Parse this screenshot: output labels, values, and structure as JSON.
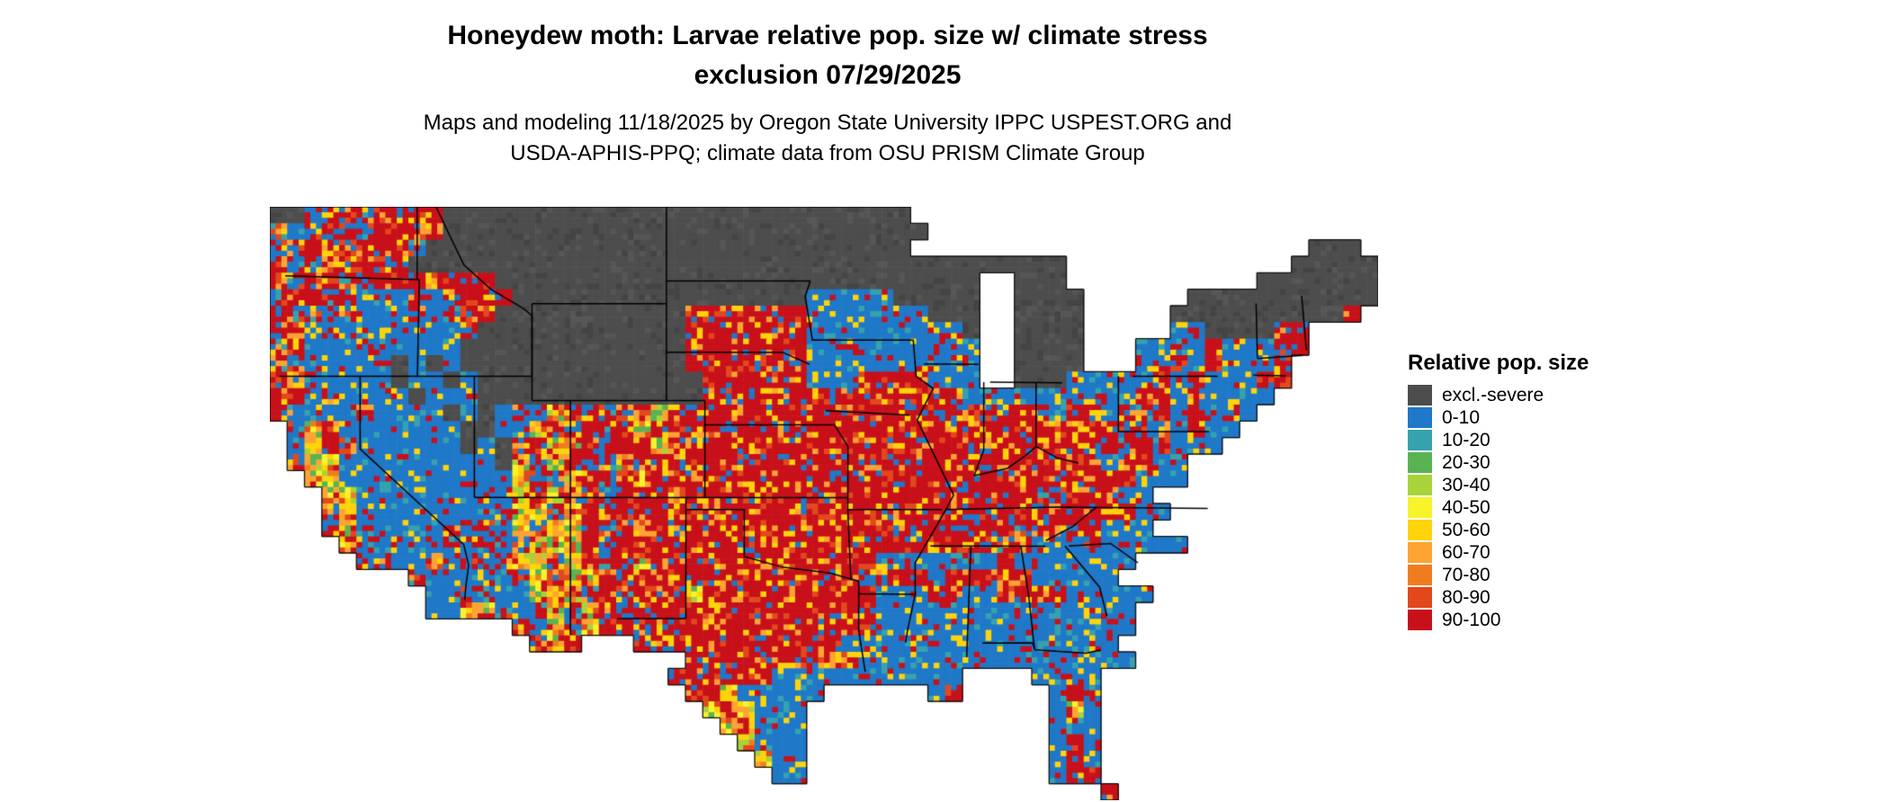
{
  "header": {
    "title_line1": "Honeydew moth: Larvae relative pop. size w/ climate stress",
    "title_line2": "exclusion 07/29/2025",
    "subtitle_line1": "Maps and modeling 11/18/2025 by Oregon State University IPPC USPEST.ORG and",
    "subtitle_line2": "USDA-APHIS-PPQ; climate data from OSU PRISM Climate Group"
  },
  "legend": {
    "title": "Relative pop. size",
    "entries": [
      {
        "label": "excl.-severe",
        "color": "#4d4d4d"
      },
      {
        "label": "0-10",
        "color": "#1f78c8"
      },
      {
        "label": "10-20",
        "color": "#35a2ad"
      },
      {
        "label": "20-30",
        "color": "#59b353"
      },
      {
        "label": "30-40",
        "color": "#a8d33a"
      },
      {
        "label": "40-50",
        "color": "#f7f32c"
      },
      {
        "label": "50-60",
        "color": "#ffd40a"
      },
      {
        "label": "60-70",
        "color": "#ffa333"
      },
      {
        "label": "70-80",
        "color": "#ef7d20"
      },
      {
        "label": "80-90",
        "color": "#e2481c"
      },
      {
        "label": "90-100",
        "color": "#c8101a"
      }
    ]
  },
  "map": {
    "background": "#ffffff",
    "outline_color": "#111111",
    "border_color": "#000000",
    "proj": {
      "lon_min": -124.7,
      "lon_span": 57.7,
      "lat_max": 49.0,
      "lat_span": 24.5
    },
    "palette": {
      "g": [
        "#4d4d4d",
        "#4d4d4d",
        "#4d4d4d",
        "#4d4d4d",
        "#4d4d4d",
        "#565656",
        "#444444",
        "#4d4d4d",
        "#4d4d4d"
      ],
      "b": [
        "#1f78c8",
        "#1f78c8",
        "#1f78c8",
        "#1f78c8",
        "#1f78c8",
        "#1f78c8",
        "#35a2ad",
        "#1f78c8",
        "#c8101a",
        "#1f78c8",
        "#ffd40a",
        "#1f78c8"
      ],
      "r": [
        "#c8101a",
        "#c8101a",
        "#c8101a",
        "#c8101a",
        "#c8101a",
        "#e2481c",
        "#c8101a",
        "#ffa333",
        "#c8101a",
        "#ffd40a",
        "#c8101a",
        "#1f78c8"
      ],
      "y": [
        "#ffd40a",
        "#ffa333",
        "#f7f32c",
        "#a8d33a",
        "#e2481c",
        "#ffd40a",
        "#c8101a",
        "#59b353",
        "#ffa333",
        "#ef7d20"
      ],
      "m": [
        "#c8101a",
        "#1f78c8",
        "#c8101a",
        "#1f78c8",
        "#ffd40a",
        "#e2481c",
        "#1f78c8",
        "#c8101a",
        "#35a2ad",
        "#ffa333",
        "#c8101a",
        "#1f78c8"
      ]
    },
    "rows": [
      "ggmmmmrrrrggggggggggggggggggggggggggg...........................",
      "mbmrmmrrmrgggggggggggggggggggggggggggg..........................",
      "mmrrmrrrmgggggggggggggggggggggggggggg.......................ggg.",
      "rmmrmrmrgggggggggggggggggggggggggggggggggggggg.............ggggg",
      "rmrrmmrrrrrrrgggggggggggggggggggggggggggg..ggg...........ggggggg",
      "mrrmmbmbmbmrrrgggggggggggggggggbbbbbggggg..gggg......ggggggggggg",
      "rmmbmbbbmbmrrgggggggggggrrrrrrrbbbbbbbggg..gggg.....ggggggggggr.",
      "mrbbbbbbbbbrggggggggggggrrrrrrrbbbbbbbbbg..gggg.....bbggggrr....",
      "mrbbbmbbbbbgggggggggggggrrrrrrrbbbbbbbbbb..gggg...bbbbrbbbrr....",
      "mmbbbbbgbgbgggggggggggggrrrrrrrbbbbbbbbbb..gggg...bbrbrbbbr.....",
      "rmbbbbbgbbgbgggggggggggggrrrrrrbbbrrrrbbb..gggbbbbbrbrbbbrr.....",
      "rrbmbbbbgbbbgggggggggggggrrrrrrrrrrrrrrrbbbbbbbbbbrrbrbbbb......",
      "rmbbbmbbbbgbgbmmyrrmmryrrrrrrrrrrrrrrrrrrrrrrbrrbrmrbrbbb......."
    ],
    "rows2": [
      ".myrbbbbbbbggbmymmrmryrrrrrrrrrrrrrrrrrrrrrrrrrrrmmmbrbb........",
      ".byrmbbbbbbgbgmmyyrmrryrrrrrrrrrrrrrrrrrrrrrrrrmrmrmbbb.........",
      ".myybbbbbbbbbgymyrmmyrrrrrrrrrrrrrrrrrrrrrrrrrrrbrrbb...........",
      "..yybbbbbbbbbbymmyrmryrrrrrrrrrrrrrrrrrrrrrrrrrrrrbbb...........",
      "...yybbbbbbbmbymyrrmrrryrrrrrrrrrrrrrrrrrrrrmmrrrbb.............",
      "...mybbbbbbbbmyymyrmrrrrrrrrrrrrrrrrrrrrrrrrrrrrrrbb............",
      "...mybbbbbmbmbymyyrmryrrrrrrrrrrrrrrrrrrrrrmmrrrbbb.............",
      "....ybbbbbmbmbmyyyrmrrrrrrrrrrrrrrrrrrrrrrmrbbbrbbbbb...........",
      ".....bmbbmbmbmyymyrmryrrrrrrrrrrrrrbbbbbbbrbbbbbbb..............",
      "........mbbbbbmymyyrmrrrrrrrrrrrrrbrrrbrrrrrbbbbb...............",
      ".........bbmbbbyyymrmrrryrrrrrrrrrrbbbrrbbrrrrbbbbb.............",
      ".........bbyymbmymyrmrrrrrrrrrrrrrrbbbbbbbbbbbbbbb..............",
      "..............mbymyrrmrrrrrrrrrrrrrbbbbbbbbbbbbbbb..............",
      "...............myr...rrrrrrrrrrrrbbbbbbbbbbbbbbbb..............."
    ],
    "rows3": [
      "........................rrrrrrrrrrbbbbbbbbbbbbbbbb..............",
      ".......................rrrrrrbbbbbbbbbbb....bbbb................",
      "........................rrybbbbb......br.....brb................",
      ".........................yrybbb..............byb................",
      "..........................yrbbb..............bbb................",
      "...........................ybbb..............brb................",
      "............................ybb..............brb................",
      ".............................bb..............brr................",
      "................................................r..............."
    ],
    "borders": [
      [
        [
          -123.9,
          46.15
        ],
        [
          -116.92,
          45.99
        ]
      ],
      [
        [
          -117.03,
          49.0
        ],
        [
          -117.03,
          46.0
        ]
      ],
      [
        [
          -116.92,
          45.99
        ],
        [
          -117.02,
          42.0
        ]
      ],
      [
        [
          -124.2,
          42.0
        ],
        [
          -111.05,
          42.0
        ]
      ],
      [
        [
          -116.05,
          49.0
        ],
        [
          -114.6,
          46.6
        ],
        [
          -113.2,
          45.6
        ],
        [
          -111.5,
          44.8
        ],
        [
          -111.05,
          44.5
        ],
        [
          -111.05,
          42.0
        ]
      ],
      [
        [
          -111.05,
          45.0
        ],
        [
          -104.05,
          45.0
        ]
      ],
      [
        [
          -111.05,
          45.0
        ],
        [
          -111.05,
          41.0
        ]
      ],
      [
        [
          -114.05,
          42.0
        ],
        [
          -114.05,
          37.0
        ]
      ],
      [
        [
          -120.0,
          42.0
        ],
        [
          -120.0,
          39.0
        ],
        [
          -114.6,
          35.05
        ]
      ],
      [
        [
          -114.6,
          35.05
        ],
        [
          -114.35,
          34.2
        ],
        [
          -114.5,
          33.3
        ],
        [
          -114.55,
          32.76
        ]
      ],
      [
        [
          -114.05,
          37.0
        ],
        [
          -94.62,
          36.99
        ]
      ],
      [
        [
          -109.05,
          41.0
        ],
        [
          -109.05,
          31.33
        ]
      ],
      [
        [
          -104.05,
          49.0
        ],
        [
          -104.05,
          41.0
        ]
      ],
      [
        [
          -111.05,
          41.0
        ],
        [
          -102.05,
          41.0
        ]
      ],
      [
        [
          -102.05,
          41.0
        ],
        [
          -102.05,
          37.0
        ]
      ],
      [
        [
          -104.05,
          45.94
        ],
        [
          -96.56,
          45.94
        ]
      ],
      [
        [
          -104.05,
          43.0
        ],
        [
          -98.0,
          42.99
        ],
        [
          -96.6,
          42.5
        ]
      ],
      [
        [
          -102.05,
          40.0
        ],
        [
          -95.31,
          40.0
        ]
      ],
      [
        [
          -96.56,
          45.94
        ],
        [
          -96.83,
          45.3
        ],
        [
          -96.45,
          43.5
        ],
        [
          -91.2,
          43.5
        ]
      ],
      [
        [
          -95.77,
          40.58
        ],
        [
          -91.4,
          40.4
        ]
      ],
      [
        [
          -95.31,
          40.0
        ],
        [
          -94.6,
          39.1
        ],
        [
          -94.61,
          36.5
        ]
      ],
      [
        [
          -94.61,
          36.5
        ],
        [
          -89.7,
          36.5
        ]
      ],
      [
        [
          -94.61,
          36.5
        ],
        [
          -94.45,
          33.63
        ],
        [
          -94.04,
          33.55
        ]
      ],
      [
        [
          -103.04,
          37.0
        ],
        [
          -103.04,
          32.0
        ]
      ],
      [
        [
          -106.62,
          32.0
        ],
        [
          -103.06,
          32.0
        ]
      ],
      [
        [
          -103.0,
          36.5
        ],
        [
          -100.0,
          36.5
        ],
        [
          -100.0,
          34.56
        ],
        [
          -98.0,
          34.12
        ],
        [
          -95.5,
          33.87
        ],
        [
          -94.45,
          33.63
        ]
      ],
      [
        [
          -94.04,
          33.55
        ],
        [
          -94.04,
          31.5
        ],
        [
          -93.7,
          29.8
        ]
      ],
      [
        [
          -94.05,
          33.02
        ],
        [
          -91.17,
          33.0
        ]
      ],
      [
        [
          -91.2,
          43.5
        ],
        [
          -91.05,
          42.0
        ],
        [
          -90.16,
          41.5
        ],
        [
          -91.0,
          40.2
        ],
        [
          -90.2,
          38.9
        ],
        [
          -89.1,
          37.1
        ],
        [
          -89.5,
          36.5
        ],
        [
          -90.3,
          35.4
        ],
        [
          -91.1,
          34.3
        ],
        [
          -91.1,
          33.0
        ],
        [
          -91.5,
          31.5
        ],
        [
          -91.6,
          31.0
        ]
      ],
      [
        [
          -90.64,
          42.51
        ],
        [
          -87.8,
          42.49
        ]
      ],
      [
        [
          -87.53,
          41.76
        ],
        [
          -87.53,
          38.95
        ],
        [
          -88.03,
          37.9
        ]
      ],
      [
        [
          -84.81,
          41.76
        ],
        [
          -84.81,
          39.1
        ]
      ],
      [
        [
          -87.2,
          41.76
        ],
        [
          -83.45,
          41.73
        ]
      ],
      [
        [
          -88.03,
          37.9
        ],
        [
          -86.3,
          38.2
        ],
        [
          -85.4,
          38.7
        ],
        [
          -84.8,
          39.1
        ],
        [
          -83.7,
          38.63
        ],
        [
          -82.6,
          38.42
        ]
      ],
      [
        [
          -89.5,
          36.5
        ],
        [
          -83.68,
          36.6
        ],
        [
          -75.87,
          36.55
        ]
      ],
      [
        [
          -90.31,
          35.0
        ],
        [
          -84.32,
          34.99
        ]
      ],
      [
        [
          -84.29,
          35.22
        ],
        [
          -82.9,
          35.8
        ],
        [
          -81.65,
          36.61
        ]
      ],
      [
        [
          -83.1,
          35.0
        ],
        [
          -80.93,
          35.1
        ],
        [
          -79.5,
          34.3
        ]
      ],
      [
        [
          -88.2,
          34.99
        ],
        [
          -88.42,
          30.4
        ]
      ],
      [
        [
          -85.6,
          34.99
        ],
        [
          -85.18,
          32.87
        ],
        [
          -84.89,
          30.75
        ]
      ],
      [
        [
          -87.6,
          30.99
        ],
        [
          -85.0,
          31.0
        ],
        [
          -84.86,
          30.71
        ],
        [
          -82.2,
          30.57
        ],
        [
          -81.44,
          30.71
        ]
      ],
      [
        [
          -83.3,
          35.0
        ],
        [
          -81.5,
          33.3
        ],
        [
          -81.12,
          32.1
        ]
      ],
      [
        [
          -80.52,
          42.0
        ],
        [
          -80.52,
          39.72
        ],
        [
          -75.79,
          39.72
        ]
      ],
      [
        [
          -79.76,
          42.0
        ],
        [
          -75.35,
          42.0
        ]
      ],
      [
        [
          -73.35,
          45.01
        ],
        [
          -73.28,
          42.74
        ]
      ],
      [
        [
          -73.28,
          42.74
        ],
        [
          -70.9,
          42.87
        ]
      ],
      [
        [
          -73.5,
          42.05
        ],
        [
          -71.8,
          42.02
        ]
      ],
      [
        [
          -70.73,
          43.07
        ],
        [
          -70.98,
          45.33
        ]
      ]
    ]
  }
}
